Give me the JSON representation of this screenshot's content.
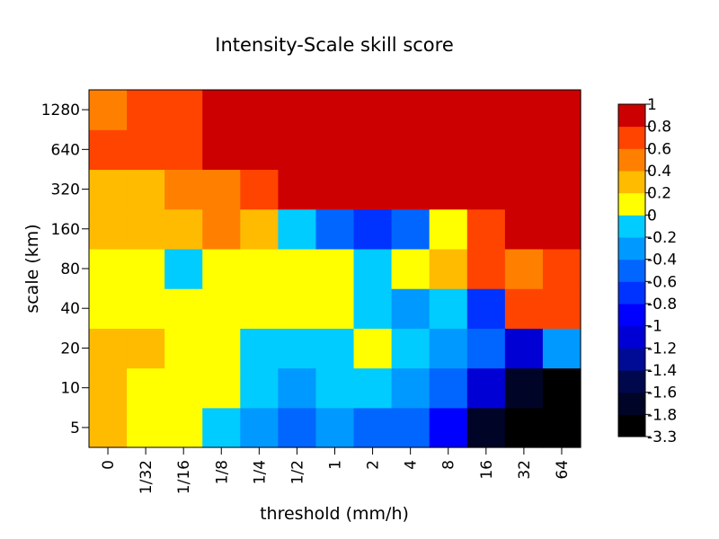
{
  "chart_data": {
    "type": "heatmap",
    "title": "Intensity-Scale skill score",
    "xlabel": "threshold (mm/h)",
    "ylabel": "scale (km)",
    "x_categories": [
      "0",
      "1/32",
      "1/16",
      "1/8",
      "1/4",
      "1/2",
      "1",
      "2",
      "4",
      "8",
      "16",
      "32",
      "64"
    ],
    "y_categories": [
      "5",
      "10",
      "20",
      "40",
      "80",
      "160",
      "320",
      "640",
      "1280"
    ],
    "values": [
      [
        0.3,
        0.1,
        0.1,
        -0.1,
        -0.3,
        -0.5,
        -0.3,
        -0.5,
        -0.5,
        -0.9,
        -1.7,
        -3.3,
        -3.3
      ],
      [
        0.3,
        0.1,
        0.1,
        0.1,
        -0.1,
        -0.3,
        -0.1,
        -0.1,
        -0.3,
        -0.5,
        -1.1,
        -1.7,
        -1.9
      ],
      [
        0.3,
        0.3,
        0.1,
        0.1,
        -0.1,
        -0.1,
        -0.1,
        0.1,
        -0.1,
        -0.3,
        -0.5,
        -1.1,
        -0.3
      ],
      [
        0.1,
        0.1,
        0.1,
        0.1,
        0.1,
        0.1,
        0.1,
        -0.1,
        -0.3,
        -0.1,
        -0.7,
        0.7,
        0.7
      ],
      [
        0.1,
        0.1,
        -0.1,
        0.1,
        0.1,
        0.1,
        0.1,
        -0.1,
        0.1,
        0.3,
        0.7,
        0.5,
        0.7
      ],
      [
        0.3,
        0.3,
        0.3,
        0.5,
        0.3,
        -0.1,
        -0.5,
        -0.7,
        -0.5,
        0.1,
        0.7,
        0.9,
        0.9
      ],
      [
        0.3,
        0.3,
        0.5,
        0.5,
        0.7,
        0.9,
        0.9,
        0.9,
        0.9,
        0.9,
        0.9,
        0.9,
        0.9
      ],
      [
        0.7,
        0.7,
        0.7,
        0.9,
        0.9,
        0.9,
        0.9,
        0.9,
        0.9,
        0.9,
        0.9,
        0.9,
        0.9
      ],
      [
        0.5,
        0.7,
        0.7,
        0.9,
        0.9,
        0.9,
        0.9,
        0.9,
        0.9,
        0.9,
        0.9,
        0.9,
        0.9
      ]
    ],
    "colorbar": {
      "labels": [
        "-3.3",
        "-1.8",
        "-1.6",
        "-1.4",
        "-1.2",
        "-1",
        "-0.8",
        "-0.6",
        "-0.4",
        "-0.2",
        "0",
        "0.2",
        "0.4",
        "0.6",
        "0.8",
        "1"
      ],
      "colors": [
        "#000000",
        "#000426",
        "#00084d",
        "#000b95",
        "#0000d4",
        "#0000ff",
        "#0033ff",
        "#0066ff",
        "#0099ff",
        "#00ccff",
        "#ffff00",
        "#ffbb00",
        "#ff8000",
        "#ff4400",
        "#cc0000"
      ]
    }
  }
}
